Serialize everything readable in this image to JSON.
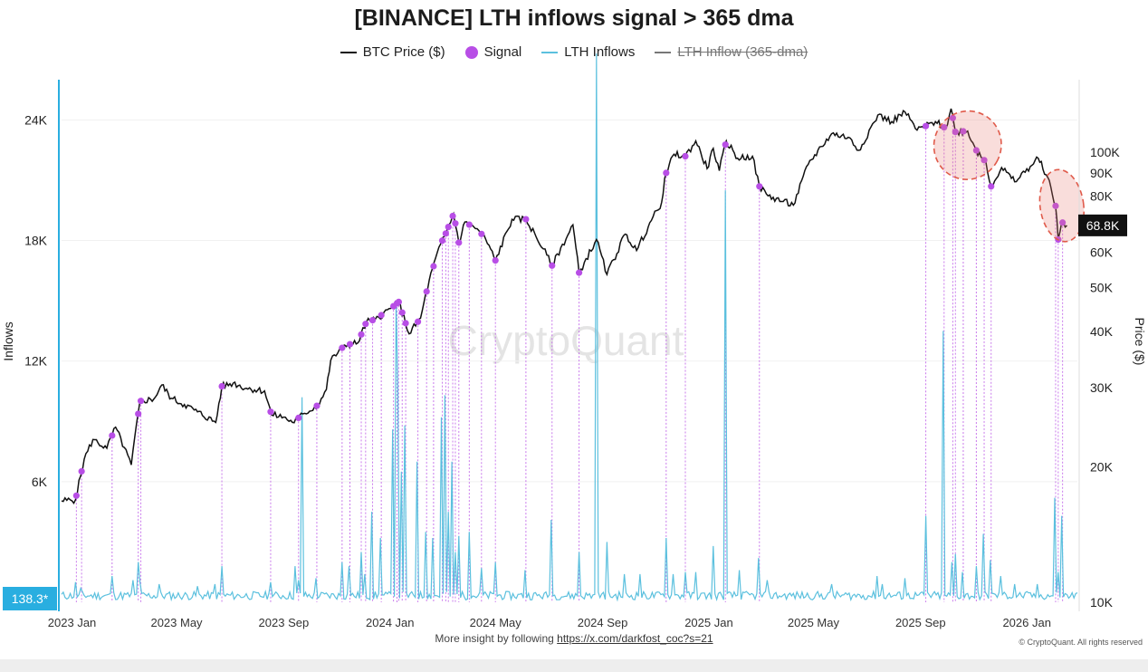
{
  "title": "[BINANCE] LTH inflows signal > 365 dma",
  "legend": {
    "btc_price": "BTC Price ($)",
    "signal": "Signal",
    "lth_inflows": "LTH Inflows",
    "lth_inflow_365": "LTH Inflow (365-dma)"
  },
  "colors": {
    "price": "#111111",
    "signal": "#b84ee6",
    "inflows": "#5bc0de",
    "current_badge": "#29aee0",
    "price_badge": "#111111",
    "highlight_circle": "#e05a4a"
  },
  "watermark": "CryptoQuant",
  "footer": {
    "text": "More insight by following",
    "link": "https://x.com/darkfost_coc?s=21",
    "copyright": "© CryptoQuant. All rights reserved"
  },
  "chart_data": {
    "type": "line",
    "title": "[BINANCE] LTH inflows signal > 365 dma",
    "xlabel": "",
    "y_left_label": "Inflows",
    "y_right_label": "Price ($)",
    "x_range": [
      "2022-12-20",
      "2026-02-28"
    ],
    "y_left_range": [
      0,
      26000
    ],
    "y_left_ticks": [
      6000,
      12000,
      18000,
      24000
    ],
    "y_left_tick_labels": [
      "6K",
      "12K",
      "18K",
      "24K"
    ],
    "y_right_scale": "log",
    "y_right_range": [
      10000,
      145000
    ],
    "y_right_ticks": [
      10000,
      20000,
      30000,
      40000,
      50000,
      60000,
      80000,
      90000,
      100000
    ],
    "y_right_tick_labels": [
      "10K",
      "20K",
      "30K",
      "40K",
      "50K",
      "60K",
      "80K",
      "90K",
      "100K"
    ],
    "x_tick_labels": [
      "2023 Jan",
      "2023 May",
      "2023 Sep",
      "2024 Jan",
      "2024 May",
      "2024 Sep",
      "2025 Jan",
      "2025 May",
      "2025 Sep",
      "2026 Jan"
    ],
    "x_tick_dates": [
      "2023-01-01",
      "2023-05-01",
      "2023-09-01",
      "2024-01-01",
      "2024-05-01",
      "2024-09-01",
      "2025-01-01",
      "2025-05-01",
      "2025-09-01",
      "2026-01-01"
    ],
    "current_inflow_label": "138.3*",
    "current_price_label": "68.8K",
    "series": [
      {
        "name": "BTC Price ($)",
        "points": [
          [
            "2022-12-20",
            16800
          ],
          [
            "2023-01-05",
            16900
          ],
          [
            "2023-01-15",
            20800
          ],
          [
            "2023-01-25",
            23000
          ],
          [
            "2023-02-10",
            22000
          ],
          [
            "2023-02-20",
            24500
          ],
          [
            "2023-03-10",
            20200
          ],
          [
            "2023-03-20",
            28000
          ],
          [
            "2023-04-05",
            28300
          ],
          [
            "2023-04-14",
            30400
          ],
          [
            "2023-04-25",
            28400
          ],
          [
            "2023-05-10",
            27500
          ],
          [
            "2023-05-25",
            26500
          ],
          [
            "2023-06-15",
            25100
          ],
          [
            "2023-06-22",
            30200
          ],
          [
            "2023-07-05",
            30700
          ],
          [
            "2023-07-20",
            29900
          ],
          [
            "2023-08-10",
            29500
          ],
          [
            "2023-08-18",
            26100
          ],
          [
            "2023-09-01",
            25800
          ],
          [
            "2023-09-11",
            25100
          ],
          [
            "2023-09-25",
            26300
          ],
          [
            "2023-10-10",
            27400
          ],
          [
            "2023-10-20",
            29700
          ],
          [
            "2023-10-25",
            34500
          ],
          [
            "2023-11-10",
            37300
          ],
          [
            "2023-11-25",
            37700
          ],
          [
            "2023-12-05",
            42000
          ],
          [
            "2023-12-15",
            42500
          ],
          [
            "2024-01-02",
            45000
          ],
          [
            "2024-01-11",
            46500
          ],
          [
            "2024-01-23",
            39500
          ],
          [
            "2024-02-05",
            42800
          ],
          [
            "2024-02-15",
            52000
          ],
          [
            "2024-02-28",
            62500
          ],
          [
            "2024-03-05",
            66000
          ],
          [
            "2024-03-14",
            73000
          ],
          [
            "2024-03-20",
            63000
          ],
          [
            "2024-03-27",
            70000
          ],
          [
            "2024-04-12",
            67000
          ],
          [
            "2024-04-20",
            64000
          ],
          [
            "2024-05-01",
            57500
          ],
          [
            "2024-05-20",
            71000
          ],
          [
            "2024-06-05",
            71000
          ],
          [
            "2024-06-25",
            61000
          ],
          [
            "2024-07-05",
            56000
          ],
          [
            "2024-07-29",
            69000
          ],
          [
            "2024-08-05",
            54000
          ],
          [
            "2024-08-25",
            64000
          ],
          [
            "2024-09-06",
            53500
          ],
          [
            "2024-09-27",
            65800
          ],
          [
            "2024-10-10",
            60500
          ],
          [
            "2024-10-29",
            72000
          ],
          [
            "2024-11-06",
            75000
          ],
          [
            "2024-11-13",
            90000
          ],
          [
            "2024-11-22",
            99000
          ],
          [
            "2024-12-05",
            98000
          ],
          [
            "2024-12-17",
            106000
          ],
          [
            "2024-12-30",
            92000
          ],
          [
            "2025-01-06",
            102000
          ],
          [
            "2025-01-13",
            91000
          ],
          [
            "2025-01-21",
            106000
          ],
          [
            "2025-02-03",
            97000
          ],
          [
            "2025-02-20",
            98000
          ],
          [
            "2025-02-28",
            84000
          ],
          [
            "2025-03-10",
            80000
          ],
          [
            "2025-04-08",
            76300
          ],
          [
            "2025-04-25",
            94000
          ],
          [
            "2025-05-10",
            103000
          ],
          [
            "2025-05-22",
            110000
          ],
          [
            "2025-06-10",
            108000
          ],
          [
            "2025-06-22",
            101000
          ],
          [
            "2025-07-14",
            121000
          ],
          [
            "2025-07-30",
            117000
          ],
          [
            "2025-08-14",
            123000
          ],
          [
            "2025-08-28",
            112000
          ],
          [
            "2025-09-18",
            117000
          ],
          [
            "2025-09-30",
            113000
          ],
          [
            "2025-10-06",
            125000
          ],
          [
            "2025-10-11",
            111000
          ],
          [
            "2025-10-25",
            111500
          ],
          [
            "2025-11-04",
            101000
          ],
          [
            "2025-11-15",
            95000
          ],
          [
            "2025-11-21",
            84000
          ],
          [
            "2025-12-03",
            92500
          ],
          [
            "2025-12-18",
            86000
          ],
          [
            "2026-01-05",
            93000
          ],
          [
            "2026-01-14",
            97000
          ],
          [
            "2026-01-25",
            88000
          ],
          [
            "2026-02-03",
            76000
          ],
          [
            "2026-02-06",
            64000
          ],
          [
            "2026-02-10",
            70000
          ],
          [
            "2026-02-16",
            68800
          ]
        ]
      },
      {
        "name": "LTH Inflows",
        "spikes": [
          [
            "2023-01-06",
            1000
          ],
          [
            "2023-01-12",
            700
          ],
          [
            "2023-02-16",
            1300
          ],
          [
            "2023-03-12",
            1100
          ],
          [
            "2023-03-18",
            2000
          ],
          [
            "2023-03-21",
            1000
          ],
          [
            "2023-04-12",
            900
          ],
          [
            "2023-05-26",
            800
          ],
          [
            "2023-06-15",
            900
          ],
          [
            "2023-06-22",
            1800
          ],
          [
            "2023-08-17",
            1000
          ],
          [
            "2023-09-15",
            1800
          ],
          [
            "2023-09-18",
            1100
          ],
          [
            "2023-09-22",
            10200
          ],
          [
            "2023-10-09",
            1200
          ],
          [
            "2023-11-07",
            2000
          ],
          [
            "2023-11-16",
            1800
          ],
          [
            "2023-11-29",
            2500
          ],
          [
            "2023-12-04",
            1400
          ],
          [
            "2023-12-12",
            4500
          ],
          [
            "2023-12-22",
            3200
          ],
          [
            "2024-01-05",
            8600
          ],
          [
            "2024-01-09",
            15000
          ],
          [
            "2024-01-11",
            10500
          ],
          [
            "2024-01-15",
            6500
          ],
          [
            "2024-01-19",
            8800
          ],
          [
            "2024-02-02",
            7000
          ],
          [
            "2024-02-12",
            3500
          ],
          [
            "2024-02-20",
            3200
          ],
          [
            "2024-03-01",
            9200
          ],
          [
            "2024-03-05",
            10300
          ],
          [
            "2024-03-08",
            4500
          ],
          [
            "2024-03-13",
            7000
          ],
          [
            "2024-03-16",
            2500
          ],
          [
            "2024-03-20",
            3300
          ],
          [
            "2024-04-01",
            3500
          ],
          [
            "2024-04-15",
            1700
          ],
          [
            "2024-05-01",
            2000
          ],
          [
            "2024-06-05",
            1600
          ],
          [
            "2024-07-05",
            4100
          ],
          [
            "2024-08-05",
            2500
          ],
          [
            "2024-08-25",
            27300
          ],
          [
            "2024-09-06",
            3000
          ],
          [
            "2024-09-27",
            1400
          ],
          [
            "2024-10-15",
            1400
          ],
          [
            "2024-11-13",
            3200
          ],
          [
            "2024-11-22",
            1400
          ],
          [
            "2024-12-05",
            1500
          ],
          [
            "2024-12-17",
            1500
          ],
          [
            "2025-01-06",
            2800
          ],
          [
            "2025-01-20",
            20500
          ],
          [
            "2025-02-05",
            1600
          ],
          [
            "2025-02-28",
            2200
          ],
          [
            "2025-03-10",
            1100
          ],
          [
            "2025-05-22",
            900
          ],
          [
            "2025-07-14",
            1300
          ],
          [
            "2025-07-20",
            900
          ],
          [
            "2025-08-14",
            1200
          ],
          [
            "2025-09-07",
            4300
          ],
          [
            "2025-09-28",
            13500
          ],
          [
            "2025-10-08",
            2000
          ],
          [
            "2025-10-11",
            2400
          ],
          [
            "2025-10-20",
            1500
          ],
          [
            "2025-11-04",
            1800
          ],
          [
            "2025-11-13",
            3400
          ],
          [
            "2025-11-21",
            2100
          ],
          [
            "2025-12-03",
            1300
          ],
          [
            "2025-12-18",
            900
          ],
          [
            "2026-01-14",
            900
          ],
          [
            "2026-02-03",
            5200
          ],
          [
            "2026-02-06",
            1500
          ],
          [
            "2026-02-11",
            4300
          ]
        ],
        "current_value": 138.3
      },
      {
        "name": "Signal",
        "dates": [
          "2023-01-06",
          "2023-01-12",
          "2023-02-16",
          "2023-03-18",
          "2023-03-21",
          "2023-06-22",
          "2023-08-17",
          "2023-09-18",
          "2023-10-09",
          "2023-11-07",
          "2023-11-16",
          "2023-11-29",
          "2023-12-04",
          "2023-12-12",
          "2023-12-22",
          "2024-01-05",
          "2024-01-09",
          "2024-01-11",
          "2024-01-15",
          "2024-01-19",
          "2024-02-02",
          "2024-02-12",
          "2024-02-20",
          "2024-03-01",
          "2024-03-05",
          "2024-03-08",
          "2024-03-13",
          "2024-03-16",
          "2024-03-20",
          "2024-04-01",
          "2024-04-15",
          "2024-05-01",
          "2024-06-05",
          "2024-07-05",
          "2024-08-05",
          "2024-11-13",
          "2024-12-05",
          "2025-01-20",
          "2025-02-28",
          "2025-09-07",
          "2025-09-28",
          "2025-10-08",
          "2025-10-11",
          "2025-10-20",
          "2025-11-04",
          "2025-11-13",
          "2025-11-21",
          "2026-02-03",
          "2026-02-06",
          "2026-02-11"
        ]
      }
    ],
    "annotations": [
      {
        "type": "dashed-ellipse",
        "around": "2025-10 peak signals"
      },
      {
        "type": "dashed-ellipse",
        "around": "2026-02 drop signals"
      }
    ]
  }
}
